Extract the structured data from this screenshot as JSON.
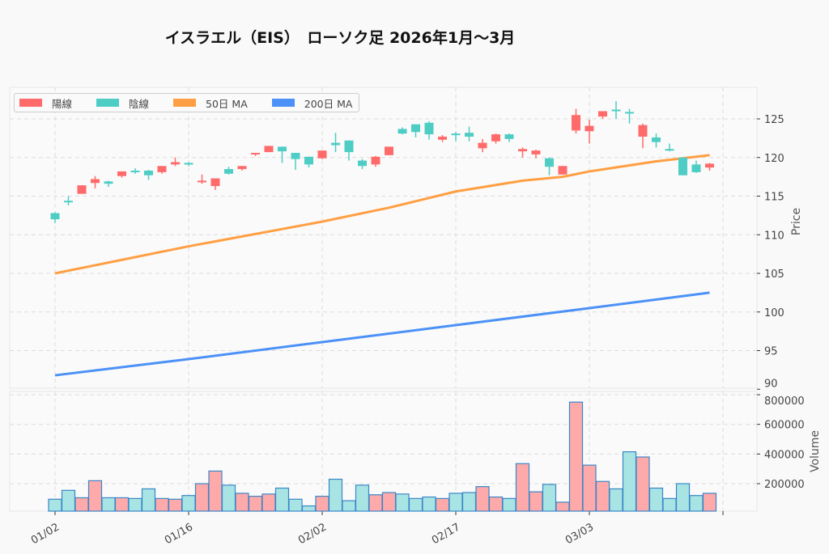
{
  "chart_data": {
    "type": "candlestick",
    "title": "イスラエル（EIS）　ローソク足  2026年1月〜3月",
    "ylabel_price": "Price",
    "ylabel_volume": "Volume",
    "price_ticks": [
      90,
      95,
      100,
      105,
      110,
      115,
      120,
      125
    ],
    "volume_ticks": [
      200000,
      400000,
      600000,
      800000
    ],
    "x_ticks": [
      {
        "index": 0,
        "label": "01/02"
      },
      {
        "index": 10,
        "label": "01/16"
      },
      {
        "index": 20,
        "label": "02/02"
      },
      {
        "index": 30,
        "label": "02/17"
      },
      {
        "index": 40,
        "label": "03/03"
      },
      {
        "index": 50,
        "label": ""
      }
    ],
    "grid": true,
    "legend_position": "top-left",
    "legend": [
      {
        "label": "陽線",
        "color": "#ff6b6b"
      },
      {
        "label": "陰線",
        "color": "#4ecdc4"
      },
      {
        "label": "50日 MA",
        "color": "#ff9f43"
      },
      {
        "label": "200日 MA",
        "color": "#4b91f7"
      }
    ],
    "colors": {
      "up": "#ff6b6b",
      "down": "#4ecdc4",
      "vol_up": "#ffaaaa",
      "vol_down": "#a8e4e4",
      "vol_edge": "#3a86c8"
    },
    "ohlc": [
      [
        112.8,
        112.9,
        111.5,
        112.0
      ],
      [
        114.4,
        115.0,
        113.8,
        114.3
      ],
      [
        115.3,
        116.4,
        115.3,
        116.4
      ],
      [
        116.7,
        117.6,
        116.0,
        117.2
      ],
      [
        116.9,
        117.0,
        116.2,
        116.6
      ],
      [
        117.6,
        118.2,
        117.4,
        118.2
      ],
      [
        118.3,
        118.6,
        117.9,
        118.2
      ],
      [
        118.3,
        118.4,
        117.1,
        117.7
      ],
      [
        118.1,
        118.9,
        117.9,
        118.9
      ],
      [
        119.1,
        120.0,
        118.9,
        119.4
      ],
      [
        119.3,
        119.4,
        118.9,
        119.1
      ],
      [
        116.9,
        117.8,
        116.6,
        117.0
      ],
      [
        116.3,
        117.3,
        115.8,
        117.3
      ],
      [
        118.5,
        118.8,
        117.8,
        117.9
      ],
      [
        118.5,
        118.9,
        118.3,
        118.9
      ],
      [
        120.4,
        120.6,
        120.2,
        120.6
      ],
      [
        120.7,
        121.5,
        120.7,
        121.5
      ],
      [
        121.4,
        121.4,
        119.3,
        120.8
      ],
      [
        120.6,
        120.6,
        118.4,
        119.8
      ],
      [
        120.1,
        120.1,
        118.7,
        119.1
      ],
      [
        119.9,
        120.9,
        119.8,
        120.9
      ],
      [
        121.9,
        123.2,
        120.7,
        121.6
      ],
      [
        122.2,
        122.2,
        119.6,
        120.7
      ],
      [
        119.6,
        119.8,
        118.5,
        118.9
      ],
      [
        119.1,
        120.2,
        118.8,
        120.1
      ],
      [
        120.3,
        121.4,
        120.3,
        121.4
      ],
      [
        123.7,
        123.9,
        123.0,
        123.1
      ],
      [
        124.3,
        124.3,
        122.6,
        123.3
      ],
      [
        124.5,
        124.7,
        122.3,
        123.0
      ],
      [
        122.3,
        122.9,
        122.0,
        122.7
      ],
      [
        123.1,
        123.3,
        122.1,
        123.0
      ],
      [
        123.2,
        124.0,
        122.1,
        122.7
      ],
      [
        121.2,
        122.4,
        120.7,
        121.9
      ],
      [
        122.1,
        123.1,
        121.8,
        123.0
      ],
      [
        123.0,
        123.1,
        122.0,
        122.4
      ],
      [
        120.8,
        121.3,
        120.0,
        121.1
      ],
      [
        120.4,
        121.0,
        119.9,
        120.9
      ],
      [
        119.9,
        120.0,
        117.7,
        118.8
      ],
      [
        117.8,
        118.9,
        117.8,
        118.9
      ],
      [
        123.5,
        126.3,
        123.1,
        125.5
      ],
      [
        123.4,
        124.9,
        121.8,
        124.1
      ],
      [
        125.3,
        126.0,
        125.0,
        126.0
      ],
      [
        126.2,
        127.3,
        125.0,
        126.0
      ],
      [
        125.9,
        126.3,
        124.4,
        125.8
      ],
      [
        122.7,
        124.4,
        121.2,
        124.2
      ],
      [
        122.6,
        123.1,
        121.3,
        122.0
      ],
      [
        121.1,
        121.8,
        120.8,
        120.9
      ],
      [
        120.0,
        120.0,
        117.7,
        117.7
      ],
      [
        119.1,
        119.6,
        118.0,
        118.1
      ],
      [
        118.7,
        119.3,
        118.3,
        119.2
      ]
    ],
    "volume": [
      95000,
      155000,
      105000,
      220000,
      105000,
      105000,
      100000,
      165000,
      100000,
      95000,
      120000,
      200000,
      285000,
      190000,
      135000,
      115000,
      130000,
      170000,
      95000,
      50000,
      115000,
      230000,
      85000,
      190000,
      125000,
      140000,
      130000,
      100000,
      110000,
      100000,
      135000,
      140000,
      180000,
      110000,
      100000,
      335000,
      145000,
      195000,
      75000,
      750000,
      325000,
      215000,
      165000,
      415000,
      380000,
      170000,
      100000,
      200000,
      120000,
      135000
    ],
    "ma50": [
      [
        0,
        105.0
      ],
      [
        10,
        108.5
      ],
      [
        20,
        111.7
      ],
      [
        25,
        113.5
      ],
      [
        30,
        115.6
      ],
      [
        35,
        117.0
      ],
      [
        38,
        117.5
      ],
      [
        40,
        118.2
      ],
      [
        45,
        119.5
      ],
      [
        49,
        120.3
      ]
    ],
    "ma200": [
      [
        0,
        91.8
      ],
      [
        10,
        93.9
      ],
      [
        20,
        96.1
      ],
      [
        30,
        98.3
      ],
      [
        40,
        100.5
      ],
      [
        49,
        102.5
      ]
    ]
  }
}
